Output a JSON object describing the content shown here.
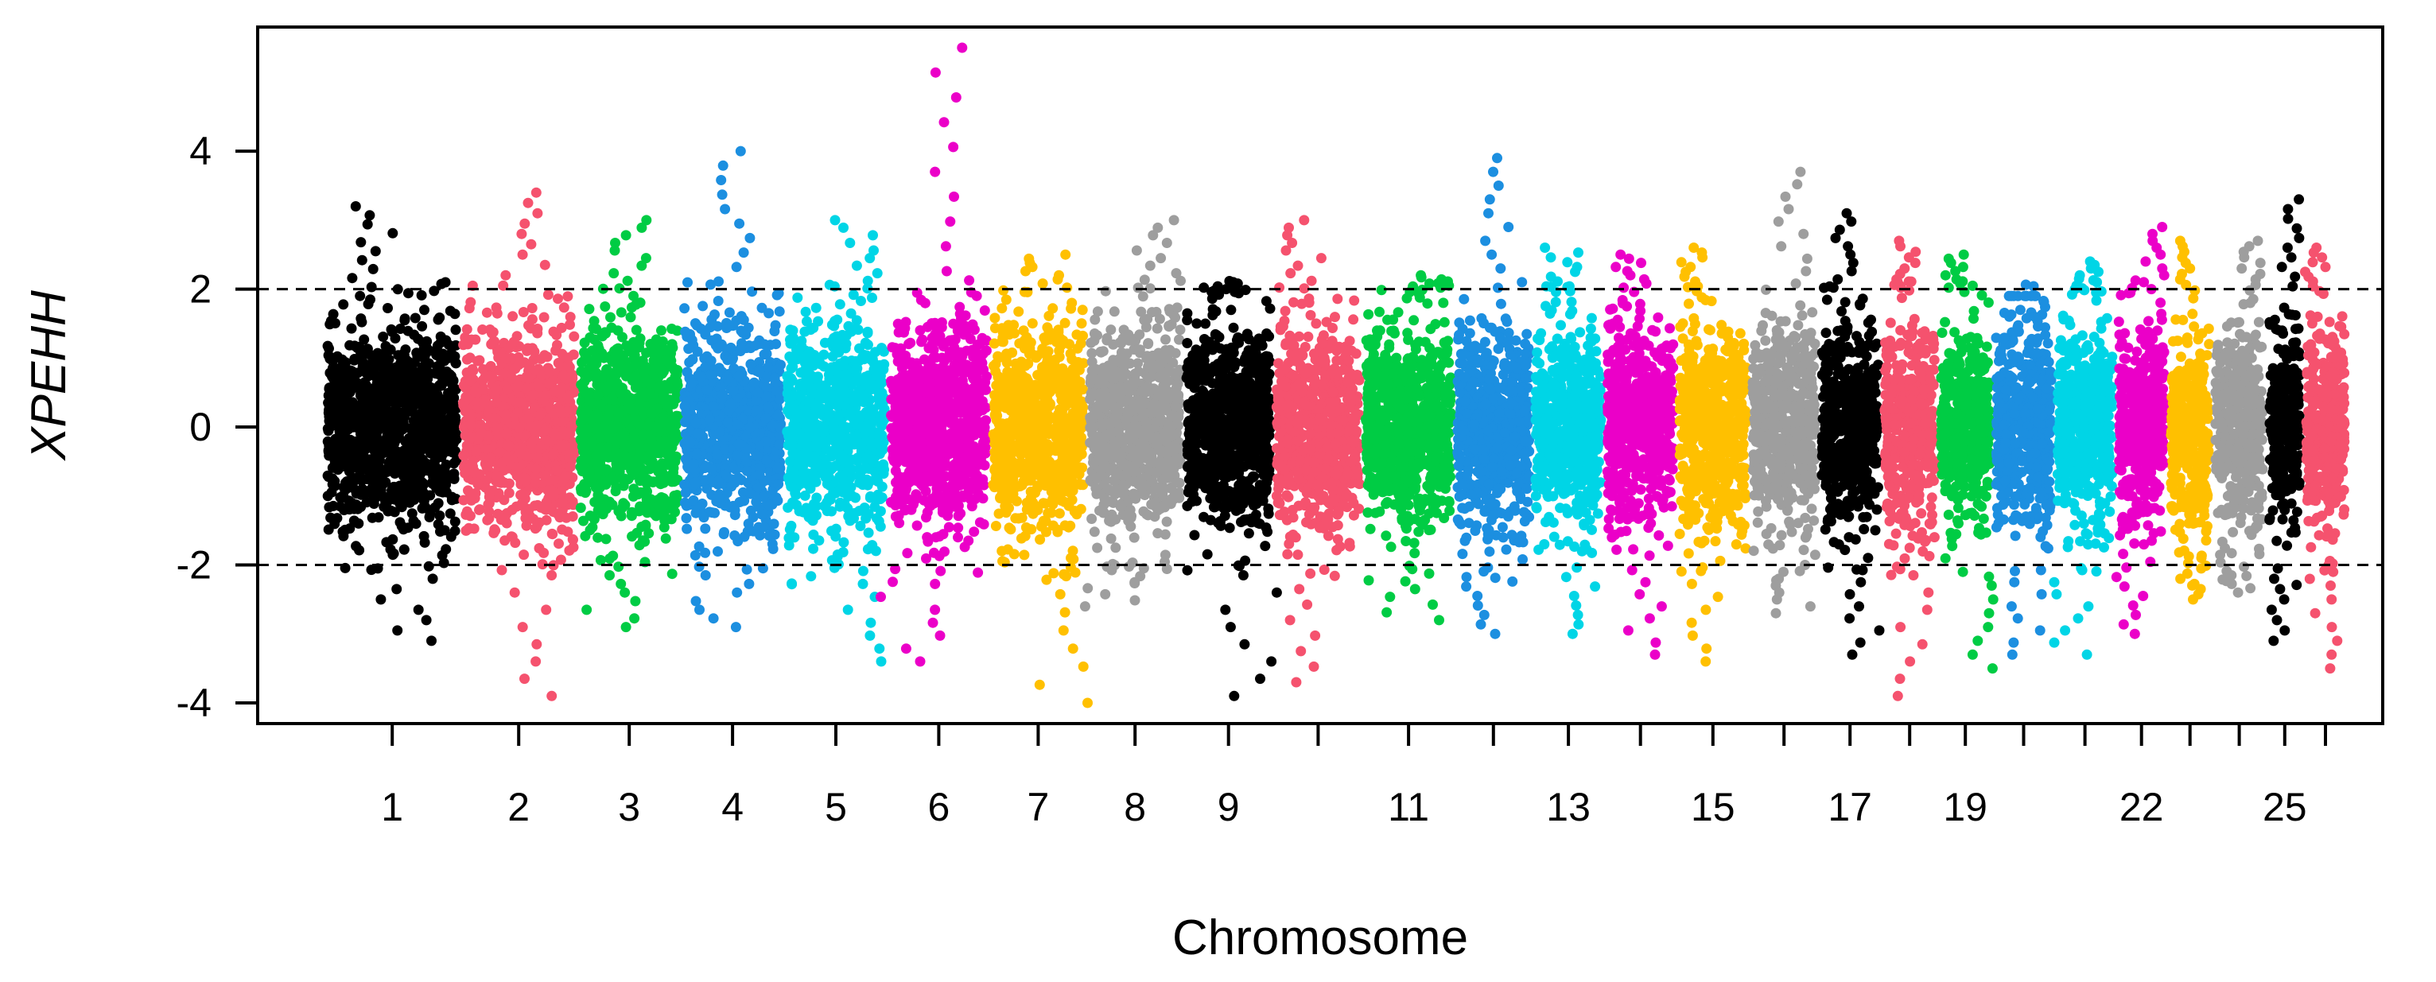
{
  "chart_data": {
    "type": "scatter",
    "subtype": "manhattan",
    "title": "",
    "xlabel": "Chromosome",
    "ylabel": "XPEHH",
    "ylim": [
      -4.3,
      5.8
    ],
    "yticks": [
      -4,
      -2,
      0,
      2,
      4
    ],
    "threshold_lines": [
      2,
      -2
    ],
    "grid": false,
    "legend": "none",
    "chromosome_tick_labels": [
      "1",
      "2",
      "3",
      "4",
      "5",
      "6",
      "7",
      "8",
      "9",
      "11",
      "13",
      "15",
      "17",
      "19",
      "22",
      "25"
    ],
    "chromosomes": [
      {
        "chr": 1,
        "label": "1",
        "color": "#000000",
        "size": 158,
        "min": -3.1,
        "max": 3.2
      },
      {
        "chr": 2,
        "label": "2",
        "color": "#F5526E",
        "size": 137,
        "min": -3.9,
        "max": 3.4
      },
      {
        "chr": 3,
        "label": "3",
        "color": "#00CC44",
        "size": 121,
        "min": -2.9,
        "max": 3.0
      },
      {
        "chr": 4,
        "label": "4",
        "color": "#1C8FE0",
        "size": 120,
        "min": -2.9,
        "max": 4.0
      },
      {
        "chr": 5,
        "label": "5",
        "color": "#00D5E6",
        "size": 121,
        "min": -3.4,
        "max": 3.0
      },
      {
        "chr": 6,
        "label": "6",
        "color": "#EB00C8",
        "size": 119,
        "min": -3.4,
        "max": 5.5
      },
      {
        "chr": 7,
        "label": "7",
        "color": "#FFC000",
        "size": 113,
        "min": -4.0,
        "max": 2.5
      },
      {
        "chr": 8,
        "label": "8",
        "color": "#9E9E9E",
        "size": 113,
        "min": -2.6,
        "max": 3.0
      },
      {
        "chr": 9,
        "label": "9",
        "color": "#000000",
        "size": 105,
        "min": -3.9,
        "max": 2.1
      },
      {
        "chr": 10,
        "label": "",
        "color": "#F5526E",
        "size": 104,
        "min": -3.7,
        "max": 3.0
      },
      {
        "chr": 11,
        "label": "11",
        "color": "#00CC44",
        "size": 107,
        "min": -2.8,
        "max": 2.2
      },
      {
        "chr": 12,
        "label": "",
        "color": "#1C8FE0",
        "size": 91,
        "min": -3.0,
        "max": 3.9
      },
      {
        "chr": 13,
        "label": "13",
        "color": "#00D5E6",
        "size": 84,
        "min": -3.0,
        "max": 2.6
      },
      {
        "chr": 14,
        "label": "",
        "color": "#EB00C8",
        "size": 84,
        "min": -3.3,
        "max": 2.5
      },
      {
        "chr": 15,
        "label": "15",
        "color": "#FFC000",
        "size": 85,
        "min": -3.4,
        "max": 2.6
      },
      {
        "chr": 16,
        "label": "",
        "color": "#9E9E9E",
        "size": 81,
        "min": -2.7,
        "max": 3.7
      },
      {
        "chr": 17,
        "label": "17",
        "color": "#000000",
        "size": 73,
        "min": -3.3,
        "max": 3.1
      },
      {
        "chr": 18,
        "label": "",
        "color": "#F5526E",
        "size": 66,
        "min": -3.9,
        "max": 2.7
      },
      {
        "chr": 19,
        "label": "19",
        "color": "#00CC44",
        "size": 64,
        "min": -3.5,
        "max": 2.5
      },
      {
        "chr": 20,
        "label": "",
        "color": "#1C8FE0",
        "size": 72,
        "min": -3.3,
        "max": 1.9
      },
      {
        "chr": 21,
        "label": "",
        "color": "#00D5E6",
        "size": 71,
        "min": -3.3,
        "max": 2.4
      },
      {
        "chr": 22,
        "label": "22",
        "color": "#EB00C8",
        "size": 61,
        "min": -3.0,
        "max": 2.9
      },
      {
        "chr": 23,
        "label": "",
        "color": "#FFC000",
        "size": 52,
        "min": -2.5,
        "max": 2.7
      },
      {
        "chr": 24,
        "label": "",
        "color": "#9E9E9E",
        "size": 63,
        "min": -2.4,
        "max": 2.7
      },
      {
        "chr": 25,
        "label": "25",
        "color": "#000000",
        "size": 43,
        "min": -3.1,
        "max": 3.3
      },
      {
        "chr": 26,
        "label": "",
        "color": "#F5526E",
        "size": 52,
        "min": -3.5,
        "max": 2.6
      }
    ]
  }
}
